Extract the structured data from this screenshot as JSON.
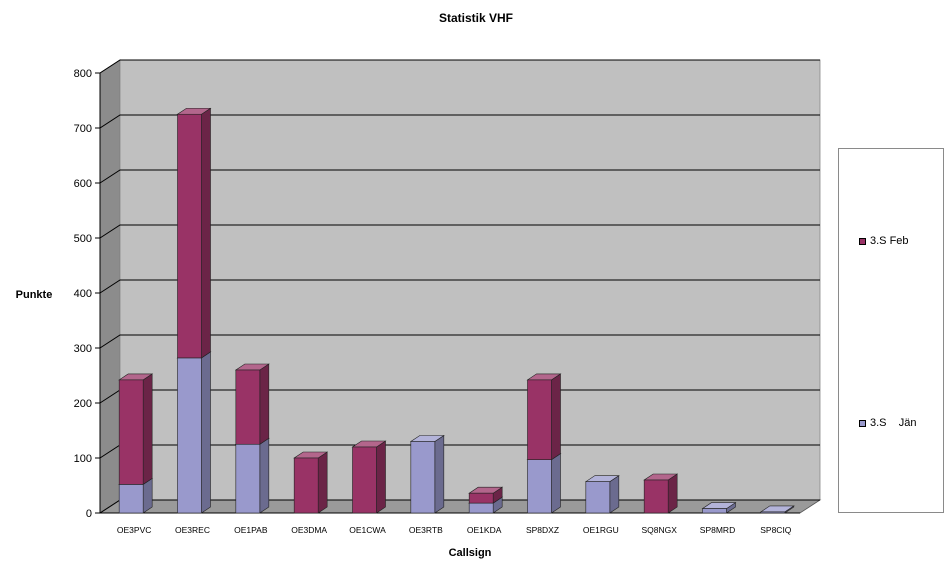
{
  "chart_data": {
    "type": "bar",
    "stacked": true,
    "three_d": true,
    "title": "Statistik VHF",
    "xlabel": "Callsign",
    "ylabel": "Punkte",
    "ylim": [
      0,
      800
    ],
    "yticks": [
      0,
      100,
      200,
      300,
      400,
      500,
      600,
      700,
      800
    ],
    "grid": true,
    "legend_position": "right",
    "categories": [
      "OE3PVC",
      "OE3REC",
      "OE1PAB",
      "OE3DMA",
      "OE1CWA",
      "OE3RTB",
      "OE1KDA",
      "SP8DXZ",
      "OE1RGU",
      "SQ8NGX",
      "SP8MRD",
      "SP8CIQ"
    ],
    "series": [
      {
        "name": "3.S    Jän",
        "color": "#9999cc",
        "values": [
          52,
          282,
          125,
          0,
          0,
          130,
          18,
          97,
          57,
          0,
          8,
          2
        ]
      },
      {
        "name": "3.S Feb",
        "color": "#993366",
        "values": [
          190,
          443,
          135,
          100,
          120,
          0,
          18,
          145,
          0,
          60,
          0,
          0
        ]
      }
    ]
  }
}
